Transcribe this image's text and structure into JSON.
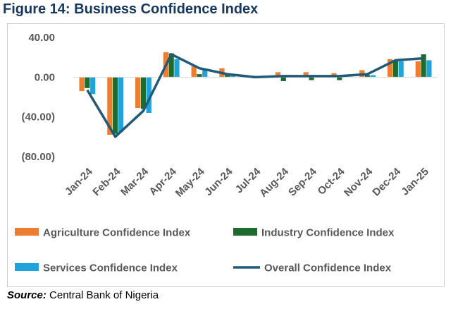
{
  "title": "Figure 14: Business Confidence Index",
  "source": {
    "label": "Source:",
    "text": " Central Bank of Nigeria"
  },
  "chart_data": {
    "type": "bar",
    "categories": [
      "Jan-24",
      "Feb-24",
      "Mar-24",
      "Apr-24",
      "May-24",
      "Jun-24",
      "Jul-24",
      "Aug-24",
      "Sep-24",
      "Oct-24",
      "Nov-24",
      "Dec-24",
      "Jan-25"
    ],
    "yticks": [
      "40.00",
      "0.00",
      "(40.00)",
      "(80.00)"
    ],
    "ytick_values": [
      40,
      0,
      -40,
      -80
    ],
    "ylim": [
      -80,
      40
    ],
    "series": [
      {
        "name": "Agriculture Confidence Index",
        "kind": "bar",
        "color": "#ed7d31",
        "values": [
          -14,
          -58,
          -31,
          25,
          11,
          9,
          0,
          5,
          5,
          4,
          7,
          18,
          16
        ]
      },
      {
        "name": "Industry Confidence Index",
        "kind": "bar",
        "color": "#1e6b2e",
        "values": [
          -11,
          -57,
          -32,
          24,
          3,
          2,
          -1,
          -4,
          -3,
          -3,
          2,
          17,
          23
        ]
      },
      {
        "name": "Services Confidence Index",
        "kind": "bar",
        "color": "#1fa3dc",
        "values": [
          -17,
          -55,
          -36,
          18,
          8,
          3,
          0,
          1,
          1,
          1,
          2,
          16,
          17
        ]
      },
      {
        "name": "Overall Confidence Index",
        "kind": "line",
        "color": "#215a78",
        "values": [
          -13,
          -60,
          -34,
          23,
          9,
          3,
          0,
          1,
          1,
          1,
          3,
          17,
          19
        ]
      }
    ],
    "grid": false,
    "legend": "bottom"
  }
}
